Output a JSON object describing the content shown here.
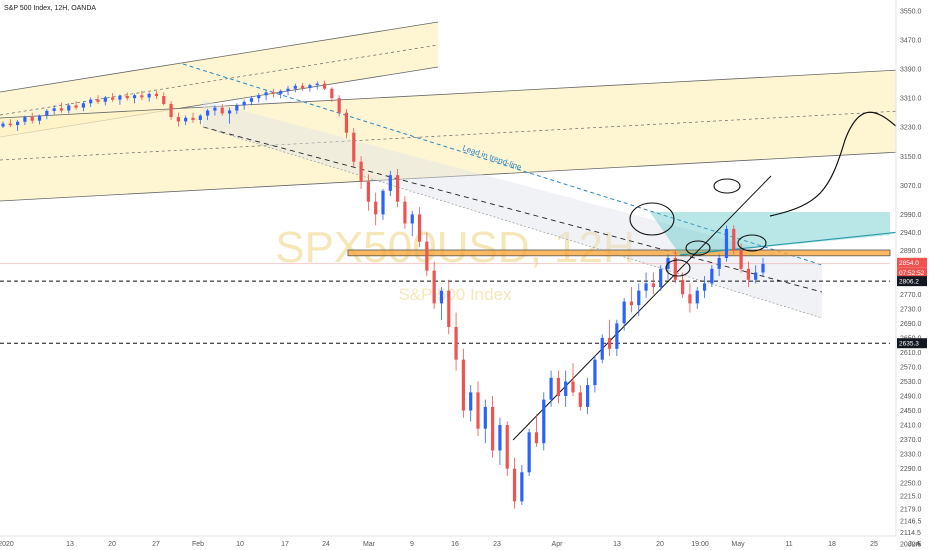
{
  "header": {
    "title": "S&P 500 Index, 12H, OANDA"
  },
  "watermark": {
    "symbol": "SPX500USD, 12H",
    "name": "S&P 500 Index"
  },
  "annotations": {
    "trend_line_label": "Lead in trend-line"
  },
  "price_tags": {
    "last": "2854.0",
    "countdown": "07:52:52",
    "support": "2806.2",
    "low_level": "2635.3"
  },
  "axis_button": "A",
  "colors": {
    "up": "#2962ff",
    "down": "#ef5350",
    "channel_fill": "#fdf3c4",
    "zone": "#f9a83b",
    "triangle": "#4fc3c3",
    "trend_label": "#2e86c1"
  },
  "chart_data": {
    "type": "candlestick",
    "title": "S&P 500 Index, 12H, OANDA",
    "y_ticks": [
      3550.0,
      3470.0,
      3390.0,
      3310.0,
      3230.0,
      3150.0,
      3070.0,
      2990.0,
      2940.0,
      2890.0,
      2850.0,
      2770.0,
      2730.0,
      2690.0,
      2650.0,
      2610.0,
      2570.0,
      2530.0,
      2490.0,
      2450.0,
      2410.0,
      2370.0,
      2330.0,
      2290.0,
      2250.0,
      2215.0,
      2179.0,
      2146.5,
      2114.5,
      2082.5
    ],
    "x_ticks": [
      "2020",
      "13",
      "20",
      "27",
      "Feb",
      "10",
      "17",
      "24",
      "Mar",
      "9",
      "16",
      "23",
      "Apr",
      "13",
      "20",
      "19:00",
      "May",
      "11",
      "18",
      "25",
      "Jun"
    ],
    "horizontal_levels": [
      2806.2,
      2635.3
    ],
    "resistance_zone": [
      2876,
      2892
    ],
    "candles": [
      [
        3232,
        3246,
        3228,
        3240
      ],
      [
        3240,
        3252,
        3230,
        3236
      ],
      [
        3236,
        3250,
        3220,
        3245
      ],
      [
        3245,
        3262,
        3236,
        3258
      ],
      [
        3258,
        3270,
        3240,
        3248
      ],
      [
        3248,
        3265,
        3238,
        3262
      ],
      [
        3262,
        3280,
        3252,
        3275
      ],
      [
        3275,
        3290,
        3265,
        3282
      ],
      [
        3282,
        3298,
        3270,
        3276
      ],
      [
        3276,
        3296,
        3268,
        3290
      ],
      [
        3290,
        3302,
        3278,
        3284
      ],
      [
        3284,
        3300,
        3274,
        3296
      ],
      [
        3296,
        3312,
        3286,
        3306
      ],
      [
        3306,
        3318,
        3294,
        3300
      ],
      [
        3300,
        3316,
        3290,
        3312
      ],
      [
        3312,
        3324,
        3300,
        3306
      ],
      [
        3306,
        3320,
        3292,
        3316
      ],
      [
        3316,
        3326,
        3304,
        3310
      ],
      [
        3310,
        3322,
        3296,
        3318
      ],
      [
        3318,
        3330,
        3304,
        3312
      ],
      [
        3312,
        3326,
        3300,
        3322
      ],
      [
        3322,
        3330,
        3308,
        3316
      ],
      [
        3316,
        3326,
        3290,
        3294
      ],
      [
        3294,
        3302,
        3250,
        3258
      ],
      [
        3258,
        3270,
        3232,
        3246
      ],
      [
        3246,
        3262,
        3236,
        3256
      ],
      [
        3256,
        3270,
        3242,
        3250
      ],
      [
        3250,
        3266,
        3238,
        3262
      ],
      [
        3262,
        3280,
        3250,
        3276
      ],
      [
        3276,
        3290,
        3262,
        3284
      ],
      [
        3284,
        3294,
        3262,
        3268
      ],
      [
        3268,
        3284,
        3240,
        3276
      ],
      [
        3276,
        3296,
        3266,
        3290
      ],
      [
        3290,
        3306,
        3278,
        3300
      ],
      [
        3300,
        3316,
        3290,
        3310
      ],
      [
        3310,
        3324,
        3298,
        3318
      ],
      [
        3318,
        3332,
        3304,
        3326
      ],
      [
        3326,
        3336,
        3312,
        3322
      ],
      [
        3322,
        3334,
        3310,
        3330
      ],
      [
        3330,
        3344,
        3318,
        3336
      ],
      [
        3336,
        3350,
        3326,
        3344
      ],
      [
        3344,
        3352,
        3330,
        3338
      ],
      [
        3338,
        3350,
        3328,
        3346
      ],
      [
        3346,
        3356,
        3334,
        3350
      ],
      [
        3350,
        3358,
        3332,
        3336
      ],
      [
        3336,
        3340,
        3300,
        3310
      ],
      [
        3310,
        3318,
        3260,
        3270
      ],
      [
        3270,
        3280,
        3200,
        3215
      ],
      [
        3215,
        3228,
        3120,
        3135
      ],
      [
        3135,
        3150,
        3060,
        3080
      ],
      [
        3080,
        3100,
        3000,
        3025
      ],
      [
        3025,
        3050,
        2960,
        2990
      ],
      [
        2990,
        3060,
        2975,
        3055
      ],
      [
        3055,
        3110,
        3040,
        3098
      ],
      [
        3098,
        3115,
        3010,
        3025
      ],
      [
        3025,
        3040,
        2950,
        2965
      ],
      [
        2965,
        3000,
        2930,
        2990
      ],
      [
        2990,
        3010,
        2900,
        2915
      ],
      [
        2915,
        2940,
        2820,
        2835
      ],
      [
        2835,
        2860,
        2730,
        2745
      ],
      [
        2745,
        2790,
        2700,
        2780
      ],
      [
        2780,
        2810,
        2660,
        2680
      ],
      [
        2680,
        2720,
        2560,
        2590
      ],
      [
        2590,
        2620,
        2430,
        2450
      ],
      [
        2450,
        2520,
        2420,
        2500
      ],
      [
        2500,
        2530,
        2380,
        2400
      ],
      [
        2400,
        2480,
        2360,
        2460
      ],
      [
        2460,
        2490,
        2320,
        2340
      ],
      [
        2340,
        2430,
        2300,
        2410
      ],
      [
        2410,
        2420,
        2270,
        2290
      ],
      [
        2290,
        2320,
        2180,
        2200
      ],
      [
        2200,
        2300,
        2190,
        2280
      ],
      [
        2280,
        2400,
        2270,
        2390
      ],
      [
        2390,
        2440,
        2350,
        2360
      ],
      [
        2360,
        2500,
        2340,
        2480
      ],
      [
        2480,
        2560,
        2460,
        2540
      ],
      [
        2540,
        2560,
        2470,
        2490
      ],
      [
        2490,
        2560,
        2460,
        2530
      ],
      [
        2530,
        2580,
        2490,
        2500
      ],
      [
        2500,
        2520,
        2450,
        2460
      ],
      [
        2460,
        2540,
        2440,
        2520
      ],
      [
        2520,
        2600,
        2500,
        2590
      ],
      [
        2590,
        2660,
        2580,
        2650
      ],
      [
        2650,
        2700,
        2600,
        2620
      ],
      [
        2620,
        2700,
        2600,
        2690
      ],
      [
        2690,
        2760,
        2670,
        2750
      ],
      [
        2750,
        2790,
        2720,
        2740
      ],
      [
        2740,
        2800,
        2710,
        2780
      ],
      [
        2780,
        2830,
        2760,
        2800
      ],
      [
        2800,
        2830,
        2770,
        2790
      ],
      [
        2790,
        2850,
        2780,
        2840
      ],
      [
        2840,
        2880,
        2810,
        2870
      ],
      [
        2870,
        2890,
        2800,
        2810
      ],
      [
        2810,
        2830,
        2760,
        2770
      ],
      [
        2770,
        2800,
        2720,
        2745
      ],
      [
        2745,
        2790,
        2730,
        2780
      ],
      [
        2780,
        2820,
        2760,
        2800
      ],
      [
        2800,
        2850,
        2790,
        2840
      ],
      [
        2840,
        2880,
        2820,
        2870
      ],
      [
        2870,
        2960,
        2860,
        2950
      ],
      [
        2950,
        2960,
        2880,
        2890
      ],
      [
        2890,
        2910,
        2830,
        2840
      ],
      [
        2840,
        2860,
        2790,
        2810
      ],
      [
        2810,
        2850,
        2800,
        2830
      ],
      [
        2830,
        2870,
        2820,
        2854
      ]
    ],
    "forecast_path": [
      [
        3070,
        0
      ],
      [
        3120,
        8
      ],
      [
        3200,
        16
      ],
      [
        3240,
        24
      ],
      [
        3236,
        28
      ]
    ]
  }
}
